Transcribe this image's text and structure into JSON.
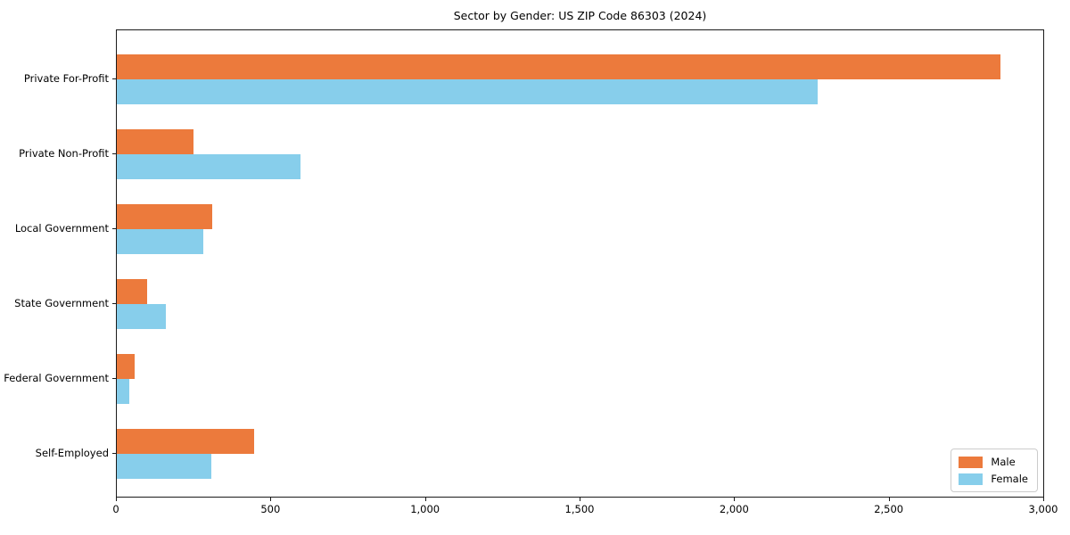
{
  "title": "Sector by Gender: US ZIP Code 86303 (2024)",
  "colors": {
    "male": "#ec7a3c",
    "female": "#87ceeb",
    "axis": "#1a1a1a",
    "legend_border": "#cccccc",
    "background": "#ffffff"
  },
  "chart_data": {
    "type": "bar",
    "orientation": "horizontal",
    "title": "Sector by Gender: US ZIP Code 86303 (2024)",
    "xlabel": "",
    "ylabel": "",
    "categories": [
      "Private For-Profit",
      "Private Non-Profit",
      "Local Government",
      "State Government",
      "Federal Government",
      "Self-Employed"
    ],
    "series": [
      {
        "name": "Male",
        "color": "#ec7a3c",
        "values": [
          2860,
          248,
          310,
          97,
          57,
          444
        ]
      },
      {
        "name": "Female",
        "color": "#87ceeb",
        "values": [
          2270,
          595,
          280,
          158,
          40,
          307
        ]
      }
    ],
    "xlim": [
      0,
      3000
    ],
    "xticks": [
      0,
      500,
      1000,
      1500,
      2000,
      2500,
      3000
    ],
    "xtick_labels": [
      "0",
      "500",
      "1,000",
      "1,500",
      "2,000",
      "2,500",
      "3,000"
    ],
    "grid": false,
    "legend_position": "lower right"
  },
  "legend": {
    "entries": [
      {
        "label": "Male",
        "color": "#ec7a3c"
      },
      {
        "label": "Female",
        "color": "#87ceeb"
      }
    ]
  }
}
